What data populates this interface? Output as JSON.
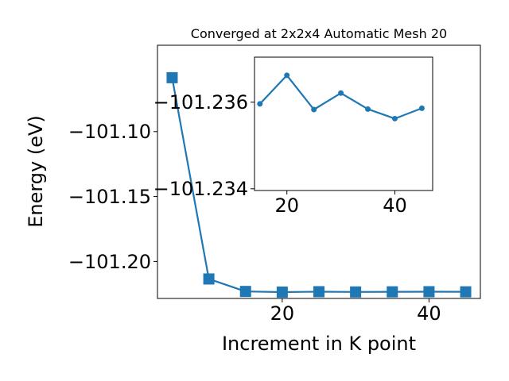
{
  "chart_data": [
    {
      "type": "line",
      "title": "Converged at 2x2x4 Automatic Mesh 20",
      "xlabel": "Increment in K point",
      "ylabel": "Energy (eV)",
      "xlim": [
        3,
        47
      ],
      "ylim": [
        -101.2285,
        -101.0335
      ],
      "xticks": [
        20,
        40
      ],
      "xtick_labels": [
        "20",
        "40"
      ],
      "yticks": [
        -101.1,
        -101.15,
        -101.2
      ],
      "ytick_labels": [
        "−101.10",
        "−101.15",
        "−101.20"
      ],
      "grid": false,
      "color": "#1f77b4",
      "marker": "square",
      "x": [
        5,
        10,
        15,
        20,
        25,
        30,
        35,
        40,
        45
      ],
      "y": [
        -101.0585,
        -101.2135,
        -101.2231,
        -101.2236,
        -101.2233,
        -101.2235,
        -101.2234,
        -101.2233,
        -101.2234
      ]
    },
    {
      "type": "line",
      "inset": true,
      "xlim": [
        14,
        47
      ],
      "ylim": [
        -101.23396,
        -101.23704
      ],
      "xticks": [
        20,
        40
      ],
      "xtick_labels": [
        "20",
        "40"
      ],
      "yticks": [
        -101.236,
        -101.234
      ],
      "ytick_labels": [
        "−101.236",
        "−101.234"
      ],
      "grid": false,
      "color": "#1f77b4",
      "marker": "circle",
      "x": [
        15,
        20,
        25,
        30,
        35,
        40,
        45
      ],
      "y": [
        -101.23596,
        -101.23662,
        -101.23583,
        -101.23621,
        -101.23584,
        -101.23562,
        -101.23586
      ]
    }
  ]
}
